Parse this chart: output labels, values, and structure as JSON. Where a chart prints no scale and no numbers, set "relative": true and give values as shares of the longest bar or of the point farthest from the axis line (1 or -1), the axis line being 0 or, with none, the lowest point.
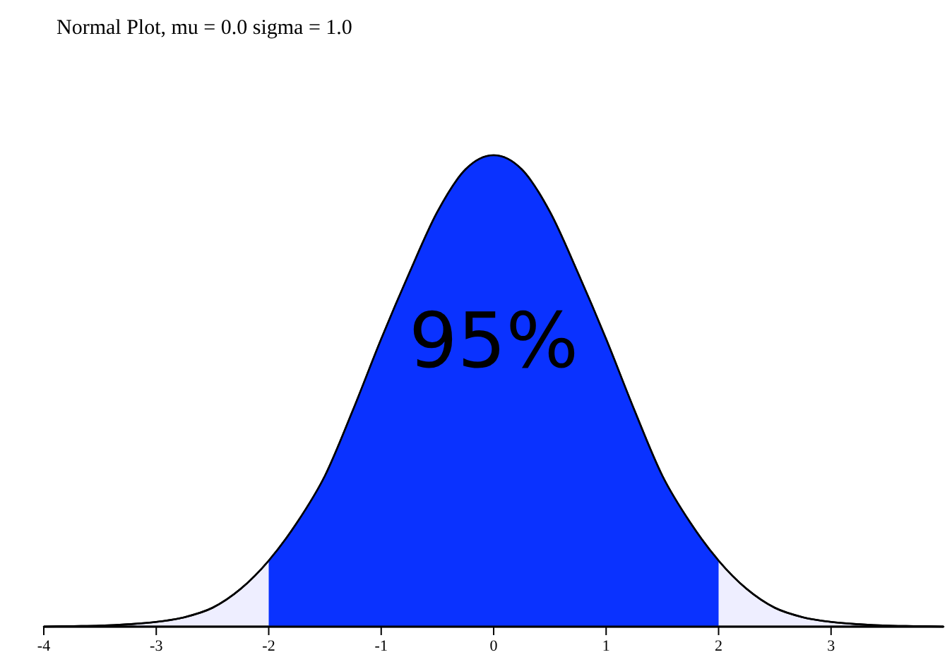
{
  "chart_data": {
    "type": "area",
    "title": "Normal Plot, mu = 0.0 sigma = 1.0",
    "relative": true,
    "xlim": [
      -4,
      4
    ],
    "xticks": [
      -4,
      -3,
      -2,
      -1,
      0,
      1,
      2,
      3
    ],
    "series": [
      {
        "color": "#eeeeff",
        "x": [
          -4,
          -3.75,
          -3.5,
          -3.25,
          -3,
          -2.75,
          -2.5,
          -2.25,
          -2,
          -1.75,
          -1.5,
          -1.25,
          -1,
          -0.75,
          -0.5,
          -0.25,
          0,
          0.25,
          0.5,
          0.75,
          1,
          1.25,
          1.5,
          1.75,
          2,
          2.25,
          2.5,
          2.75,
          3,
          3.25,
          3.5,
          3.75,
          4
        ],
        "values": [
          0,
          0.001,
          0.002,
          0.005,
          0.01,
          0.02,
          0.04,
          0.08,
          0.14,
          0.22,
          0.32,
          0.46,
          0.61,
          0.75,
          0.88,
          0.97,
          1,
          0.97,
          0.88,
          0.75,
          0.61,
          0.46,
          0.32,
          0.22,
          0.14,
          0.08,
          0.04,
          0.02,
          0.01,
          0.005,
          0.002,
          0.001,
          0
        ]
      },
      {
        "color": "#0a32ff",
        "x": [
          -2,
          -1.75,
          -1.5,
          -1.25,
          -1,
          -0.75,
          -0.5,
          -0.25,
          0,
          0.25,
          0.5,
          0.75,
          1,
          1.25,
          1.5,
          1.75,
          2
        ],
        "values": [
          0.14,
          0.22,
          0.32,
          0.46,
          0.61,
          0.75,
          0.88,
          0.97,
          1,
          0.97,
          0.88,
          0.75,
          0.61,
          0.46,
          0.32,
          0.22,
          0.14
        ]
      }
    ],
    "annotations": [
      "95%"
    ]
  }
}
